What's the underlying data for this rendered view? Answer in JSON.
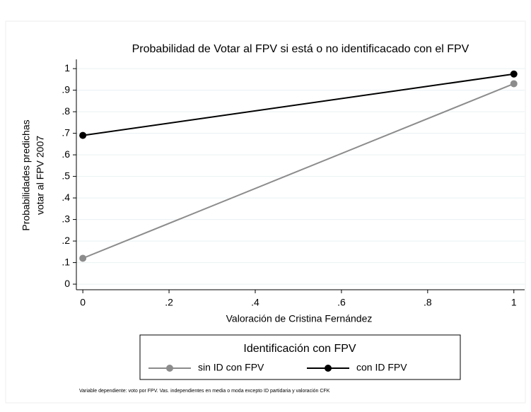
{
  "chart_data": {
    "type": "line",
    "title": "Probabilidad de Votar al FPV si está o no identificacado con el FPV",
    "xlabel": "Valoración de Cristina Fernández",
    "ylabel": [
      "Probabilidades predichas",
      "votar al FPV 2007"
    ],
    "x": [
      0,
      1
    ],
    "series": [
      {
        "name": "sin ID con FPV",
        "color": "#8c8c8c",
        "values": [
          0.12,
          0.93
        ]
      },
      {
        "name": "con ID FPV",
        "color": "#000000",
        "values": [
          0.69,
          0.975
        ]
      }
    ],
    "xlim": [
      -0.015,
      1.025
    ],
    "ylim": [
      -0.026,
      1.043
    ],
    "xticks": [
      0,
      {
        "value": 0.2,
        "label": ".2"
      },
      {
        "value": 0.4,
        "label": ".4"
      },
      {
        "value": 0.6,
        "label": ".6"
      },
      {
        "value": 0.8,
        "label": ".8"
      },
      1
    ],
    "yticks": [
      0,
      {
        "value": 0.1,
        "label": ".1"
      },
      {
        "value": 0.2,
        "label": ".2"
      },
      {
        "value": 0.3,
        "label": ".3"
      },
      {
        "value": 0.4,
        "label": ".4"
      },
      {
        "value": 0.5,
        "label": ".5"
      },
      {
        "value": 0.6,
        "label": ".6"
      },
      {
        "value": 0.7,
        "label": ".7"
      },
      {
        "value": 0.8,
        "label": ".8"
      },
      {
        "value": 0.9,
        "label": ".9"
      },
      1
    ],
    "grid": true,
    "legend_title": "Identificación con FPV",
    "legend_position": "bottom",
    "note": "Variable dependiente: voto por FPV. Vas. independientes en media o moda excepto ID partidaria y valoración CFK"
  }
}
